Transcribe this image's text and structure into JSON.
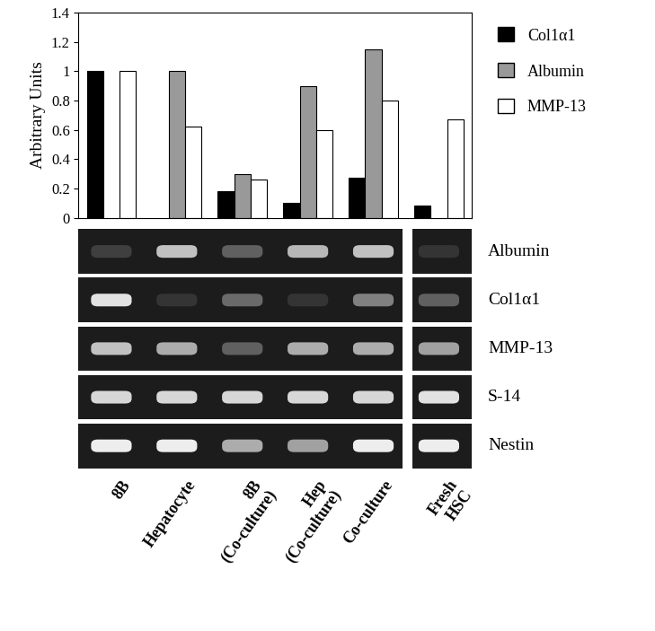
{
  "chart_data": {
    "type": "bar",
    "y_label": "Arbitrary Units",
    "categories": [
      "8B",
      "Hepatocyte",
      "8B\n(Co-culture)",
      "Hep\n(Co-culture)",
      "Co-culture",
      "Fresh\nHSC"
    ],
    "series": [
      {
        "name": "Col1α1",
        "color": "#000000",
        "values": [
          1.0,
          null,
          0.18,
          0.1,
          0.27,
          0.08
        ]
      },
      {
        "name": "Albumin",
        "color": "#999999",
        "values": [
          null,
          1.0,
          0.3,
          0.9,
          1.15,
          null
        ]
      },
      {
        "name": "MMP-13",
        "color": "#ffffff",
        "values": [
          1.0,
          0.62,
          0.26,
          0.6,
          0.8,
          0.67
        ]
      }
    ],
    "ylim": [
      0,
      1.4
    ],
    "yticks": [
      0,
      0.2,
      0.4,
      0.6,
      0.8,
      1,
      1.2,
      1.4
    ],
    "grid": false,
    "legend": "upper left",
    "tick_labels": "y"
  },
  "gel": [
    {
      "name": "Albumin",
      "intensity": [
        0.15,
        0.75,
        0.3,
        0.7,
        0.75,
        0.1
      ]
    },
    {
      "name": "Col1α1",
      "intensity": [
        0.9,
        0.1,
        0.35,
        0.1,
        0.45,
        0.3
      ]
    },
    {
      "name": "MMP-13",
      "intensity": [
        0.75,
        0.65,
        0.3,
        0.65,
        0.65,
        0.6
      ]
    },
    {
      "name": "S-14",
      "intensity": [
        0.85,
        0.85,
        0.85,
        0.85,
        0.85,
        0.9
      ]
    },
    {
      "name": "Nestin",
      "intensity": [
        0.95,
        0.95,
        0.65,
        0.6,
        0.95,
        0.95
      ]
    }
  ]
}
